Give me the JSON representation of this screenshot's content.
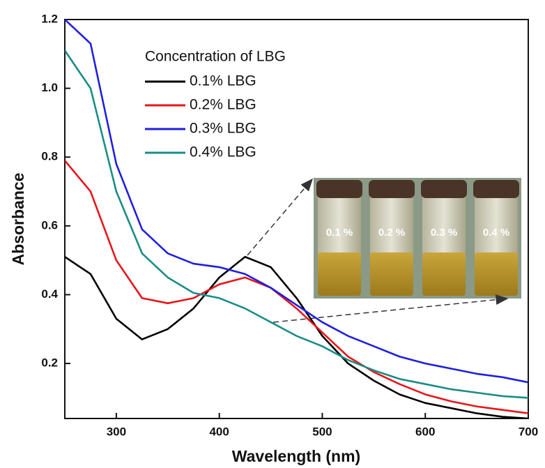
{
  "chart_data": {
    "type": "line",
    "x_label": "Wavelength (nm)",
    "y_label": "Absorbance",
    "legend_title": "Concentration of LBG",
    "legend_position": "upper center",
    "x": [
      250,
      275,
      300,
      325,
      350,
      375,
      400,
      425,
      450,
      475,
      500,
      525,
      550,
      575,
      600,
      625,
      650,
      675,
      700
    ],
    "series": [
      {
        "name": "0.1% LBG",
        "color": "#000000",
        "values": [
          0.51,
          0.46,
          0.33,
          0.27,
          0.3,
          0.36,
          0.45,
          0.51,
          0.48,
          0.39,
          0.28,
          0.2,
          0.15,
          0.11,
          0.085,
          0.07,
          0.055,
          0.045,
          0.04
        ]
      },
      {
        "name": "0.2% LBG",
        "color": "#e8151b",
        "values": [
          0.79,
          0.7,
          0.5,
          0.39,
          0.375,
          0.39,
          0.43,
          0.45,
          0.42,
          0.36,
          0.29,
          0.22,
          0.175,
          0.14,
          0.11,
          0.09,
          0.075,
          0.065,
          0.055
        ]
      },
      {
        "name": "0.3% LBG",
        "color": "#1f1fe0",
        "values": [
          1.2,
          1.13,
          0.78,
          0.59,
          0.52,
          0.49,
          0.48,
          0.46,
          0.42,
          0.37,
          0.32,
          0.28,
          0.25,
          0.22,
          0.2,
          0.185,
          0.17,
          0.16,
          0.145
        ]
      },
      {
        "name": "0.4% LBG",
        "color": "#1a8c86",
        "values": [
          1.11,
          1.0,
          0.7,
          0.52,
          0.45,
          0.405,
          0.39,
          0.36,
          0.32,
          0.28,
          0.25,
          0.21,
          0.18,
          0.155,
          0.14,
          0.125,
          0.115,
          0.105,
          0.1
        ]
      }
    ],
    "xlim": [
      250,
      700
    ],
    "xticks": [
      300,
      400,
      500,
      600,
      700
    ],
    "ylim": [
      0.04,
      1.2
    ],
    "yticks": [
      0.2,
      0.4,
      0.6,
      0.8,
      {
        "value": 1,
        "label": "1.0"
      },
      1.2
    ],
    "grid": false,
    "inset_labels": [
      "0.1 %",
      "0.2 %",
      "0.3 %",
      "0.4 %"
    ]
  }
}
